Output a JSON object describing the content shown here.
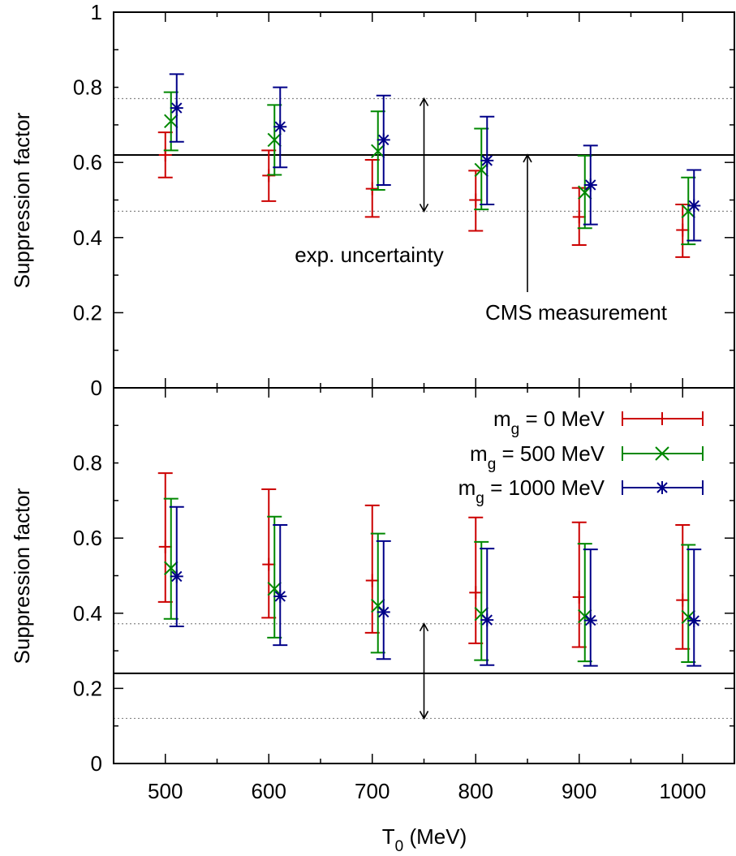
{
  "chart_data": {
    "type": "errorbar",
    "xlabel": "T",
    "xlabel_sub": "0",
    "xlabel_unit": " (MeV)",
    "xlim": [
      450,
      1050
    ],
    "x_ticks": [
      500,
      600,
      700,
      800,
      900,
      1000
    ],
    "x_tick_labels": [
      "500",
      "600",
      "700",
      "800",
      "900",
      "1000"
    ],
    "panels": [
      {
        "ylabel": "Suppression factor",
        "ylim": [
          0,
          1
        ],
        "y_tick_labels": [
          "0",
          "0.2",
          "0.4",
          "0.6",
          "0.8",
          "1"
        ],
        "y_ticks": [
          0,
          0.2,
          0.4,
          0.6,
          0.8,
          1.0
        ],
        "measurement": {
          "central": 0.62,
          "low": 0.47,
          "high": 0.77
        },
        "annotations": {
          "uncertainty_label": "exp. uncertainty",
          "measurement_label": "CMS measurement"
        },
        "series": [
          {
            "name": "m_g = 0 MeV",
            "x": [
              500,
              600,
              700,
              800,
              900,
              1000
            ],
            "y": [
              0.62,
              0.565,
              0.53,
              0.5,
              0.455,
              0.42
            ],
            "ylow": [
              0.56,
              0.497,
              0.455,
              0.418,
              0.38,
              0.348
            ],
            "yhigh": [
              0.68,
              0.632,
              0.607,
              0.578,
              0.532,
              0.488
            ]
          },
          {
            "name": "m_g = 500 MeV",
            "x": [
              500,
              600,
              700,
              800,
              900,
              1000
            ],
            "y": [
              0.71,
              0.66,
              0.63,
              0.58,
              0.52,
              0.47
            ],
            "ylow": [
              0.632,
              0.567,
              0.527,
              0.475,
              0.425,
              0.382
            ],
            "yhigh": [
              0.787,
              0.753,
              0.736,
              0.69,
              0.618,
              0.56
            ]
          },
          {
            "name": "m_g = 1000 MeV",
            "x": [
              500,
              600,
              700,
              800,
              900,
              1000
            ],
            "y": [
              0.745,
              0.695,
              0.66,
              0.605,
              0.54,
              0.485
            ],
            "ylow": [
              0.655,
              0.587,
              0.54,
              0.488,
              0.435,
              0.392
            ],
            "yhigh": [
              0.835,
              0.8,
              0.778,
              0.722,
              0.645,
              0.58
            ]
          }
        ]
      },
      {
        "ylabel": "Suppression factor",
        "ylim": [
          0,
          1
        ],
        "y_tick_labels": [
          "0",
          "0.2",
          "0.4",
          "0.6",
          "0.8"
        ],
        "y_ticks": [
          0,
          0.2,
          0.4,
          0.6,
          0.8
        ],
        "measurement": {
          "central": 0.24,
          "low": 0.12,
          "high": 0.372
        },
        "series": [
          {
            "name": "m_g = 0 MeV",
            "x": [
              500,
              600,
              700,
              800,
              900,
              1000
            ],
            "y": [
              0.577,
              0.53,
              0.487,
              0.455,
              0.443,
              0.435
            ],
            "ylow": [
              0.43,
              0.388,
              0.348,
              0.32,
              0.31,
              0.305
            ],
            "yhigh": [
              0.773,
              0.73,
              0.687,
              0.655,
              0.642,
              0.635
            ]
          },
          {
            "name": "m_g = 500 MeV",
            "x": [
              500,
              600,
              700,
              800,
              900,
              1000
            ],
            "y": [
              0.52,
              0.465,
              0.42,
              0.398,
              0.392,
              0.39
            ],
            "ylow": [
              0.385,
              0.335,
              0.295,
              0.275,
              0.272,
              0.27
            ],
            "yhigh": [
              0.705,
              0.657,
              0.612,
              0.59,
              0.585,
              0.582
            ]
          },
          {
            "name": "m_g = 1000 MeV",
            "x": [
              500,
              600,
              700,
              800,
              900,
              1000
            ],
            "y": [
              0.498,
              0.445,
              0.403,
              0.382,
              0.381,
              0.38
            ],
            "ylow": [
              0.365,
              0.315,
              0.278,
              0.262,
              0.26,
              0.26
            ],
            "yhigh": [
              0.683,
              0.635,
              0.592,
              0.572,
              0.57,
              0.57
            ]
          }
        ]
      }
    ],
    "legend": {
      "placement": "top-right of lower panel",
      "entries": [
        {
          "prefix": "m",
          "sub": "g",
          "rest": " = 0 MeV"
        },
        {
          "prefix": "m",
          "sub": "g",
          "rest": " = 500 MeV"
        },
        {
          "prefix": "m",
          "sub": "g",
          "rest": " = 1000 MeV"
        }
      ]
    },
    "colors": {
      "series": [
        "#cc0000",
        "#008800",
        "#000088"
      ],
      "axes": "#000000",
      "dotted": "#888888"
    },
    "markers": [
      "plus",
      "x",
      "star"
    ]
  }
}
